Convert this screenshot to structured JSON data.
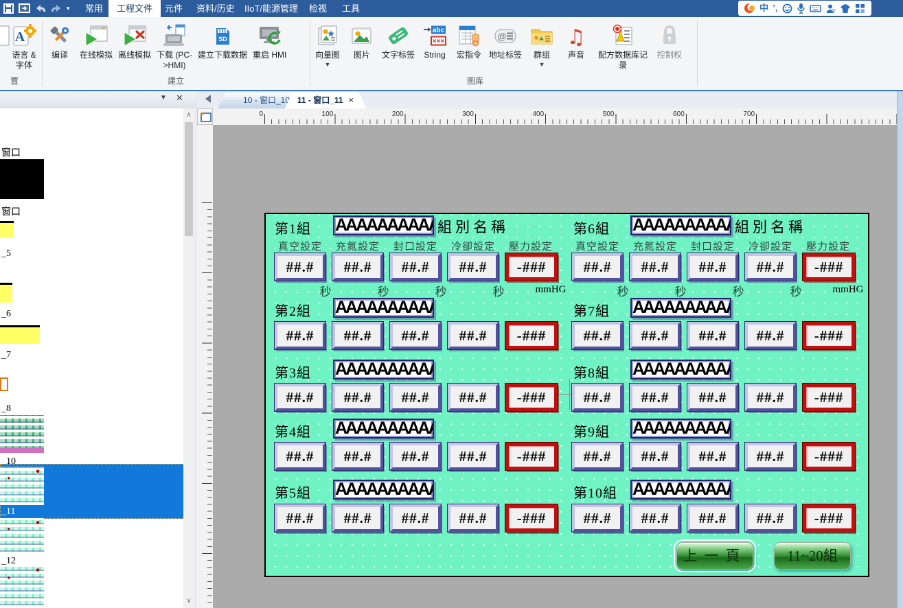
{
  "app": {
    "menus": [
      "常用",
      "工程文件",
      "元件",
      "资料/历史",
      "IIoT/能源管理",
      "检视",
      "工具"
    ],
    "active_menu": "工程文件",
    "quick_access_icons": [
      "save-icon",
      "export-window-icon",
      "undo-icon",
      "redo-icon",
      "customize-dropdown-icon"
    ],
    "tray_icons": [
      "ime-logo-icon",
      "chinese-mode-icon",
      "punctuation-icon",
      "emoji-icon",
      "mic-icon",
      "keyboard-icon",
      "user-icon",
      "skin-icon",
      "grid-icon"
    ],
    "tray_glyphs": {
      "chinese_mode": "中",
      "punctuation": "’,"
    }
  },
  "ribbon": {
    "group_settings": {
      "label": "置",
      "items": [
        {
          "label": "语言 & 字体",
          "icon": "language-font-icon"
        }
      ]
    },
    "group_build": {
      "label": "建立",
      "items": [
        {
          "label": "编译",
          "icon": "compile-icon"
        },
        {
          "label": "在线模拟",
          "icon": "online-sim-icon"
        },
        {
          "label": "离线模拟",
          "icon": "offline-sim-icon"
        },
        {
          "label": "下载 (PC->HMI)",
          "icon": "download-pc-hmi-icon"
        },
        {
          "label": "建立下载数据",
          "icon": "build-download-data-icon"
        },
        {
          "label": "重启 HMI",
          "icon": "reboot-hmi-icon"
        }
      ]
    },
    "group_gallery": {
      "label": "图库",
      "items": [
        {
          "label": "向量图",
          "icon": "vector-graphic-icon",
          "dropdown": true
        },
        {
          "label": "图片",
          "icon": "picture-icon"
        },
        {
          "label": "文字标签",
          "icon": "text-tag-icon"
        },
        {
          "label": "String",
          "icon": "string-icon"
        },
        {
          "label": "宏指令",
          "icon": "macro-icon"
        },
        {
          "label": "地址标签",
          "icon": "address-tag-icon"
        },
        {
          "label": "群组",
          "icon": "group-lib-icon",
          "dropdown": true
        },
        {
          "label": "声音",
          "icon": "sound-icon"
        },
        {
          "label": "配方数据库记录",
          "icon": "recipe-db-record-icon"
        },
        {
          "label": "控制权",
          "icon": "authority-lock-icon",
          "disabled": true
        }
      ]
    }
  },
  "tabs": [
    {
      "label": "10 - 窗口_10",
      "active": false
    },
    {
      "label": "11 - 窗口_11",
      "active": true,
      "closable": true
    }
  ],
  "sidebar": {
    "items": [
      {
        "label": "窗口",
        "thumb": "none"
      },
      {
        "label": "窗口",
        "thumb": "black"
      },
      {
        "label": "_5",
        "thumb": "yellow-small"
      },
      {
        "label": "_6",
        "thumb": "yellow-small"
      },
      {
        "label": "_7",
        "thumb": "yellow-wide"
      },
      {
        "label": "_8",
        "thumb": "orange-tiny"
      },
      {
        "label": "_10",
        "thumb": "green-dense"
      },
      {
        "label": "_11",
        "thumb": "mint",
        "selected": true
      },
      {
        "label": "_12",
        "thumb": "mint"
      },
      {
        "label": "",
        "thumb": "mint"
      }
    ]
  },
  "rulers": {
    "horizontal": [
      "0",
      "100",
      "200",
      "300",
      "400",
      "500",
      "600",
      "700"
    ],
    "vertical": [
      "0",
      "100",
      "200",
      "300",
      "400",
      "500"
    ]
  },
  "hmi": {
    "name_suffix": "組別名稱",
    "col_headers": [
      "真空設定",
      "充氮設定",
      "封口設定",
      "冷卻設定",
      "壓力設定"
    ],
    "units": [
      "秒",
      "秒",
      "秒",
      "秒",
      "mmHG"
    ],
    "groups": [
      {
        "label": "第1組",
        "name": "AAAAAAAAAA",
        "values": [
          "##.#",
          "##.#",
          "##.#",
          "##.#",
          "-###"
        ]
      },
      {
        "label": "第2組",
        "name": "AAAAAAAAAA",
        "values": [
          "##.#",
          "##.#",
          "##.#",
          "##.#",
          "-###"
        ]
      },
      {
        "label": "第3組",
        "name": "AAAAAAAAAA",
        "values": [
          "##.#",
          "##.#",
          "##.#",
          "##.#",
          "-###"
        ]
      },
      {
        "label": "第4組",
        "name": "AAAAAAAAAA",
        "values": [
          "##.#",
          "##.#",
          "##.#",
          "##.#",
          "-###"
        ]
      },
      {
        "label": "第5組",
        "name": "AAAAAAAAAA",
        "values": [
          "##.#",
          "##.#",
          "##.#",
          "##.#",
          "-###"
        ]
      },
      {
        "label": "第6組",
        "name": "AAAAAAAAAA",
        "values": [
          "##.#",
          "##.#",
          "##.#",
          "##.#",
          "-###"
        ]
      },
      {
        "label": "第7組",
        "name": "AAAAAAAAAA",
        "values": [
          "##.#",
          "##.#",
          "##.#",
          "##.#",
          "-###"
        ]
      },
      {
        "label": "第8組",
        "name": "AAAAAAAAAA",
        "values": [
          "##.#",
          "##.#",
          "##.#",
          "##.#",
          "-###"
        ]
      },
      {
        "label": "第9組",
        "name": "AAAAAAAAAA",
        "values": [
          "##.#",
          "##.#",
          "##.#",
          "##.#",
          "-###"
        ]
      },
      {
        "label": "第10組",
        "name": "AAAAAAAAAA",
        "values": [
          "##.#",
          "##.#",
          "##.#",
          "##.#",
          "-###"
        ]
      }
    ],
    "buttons": [
      {
        "label": "上一頁",
        "selected": true
      },
      {
        "label": "11~20組",
        "selected": false
      }
    ]
  },
  "colors": {
    "titlebar_blue": "#2d5c9c",
    "selection_blue": "#1179d9",
    "panel_mint": "#6ff2c4",
    "value_border_blue": "#52529e",
    "pressure_border_red": "#c01010",
    "button_green": "#2e8b2e",
    "canvas_gray": "#ababab"
  }
}
